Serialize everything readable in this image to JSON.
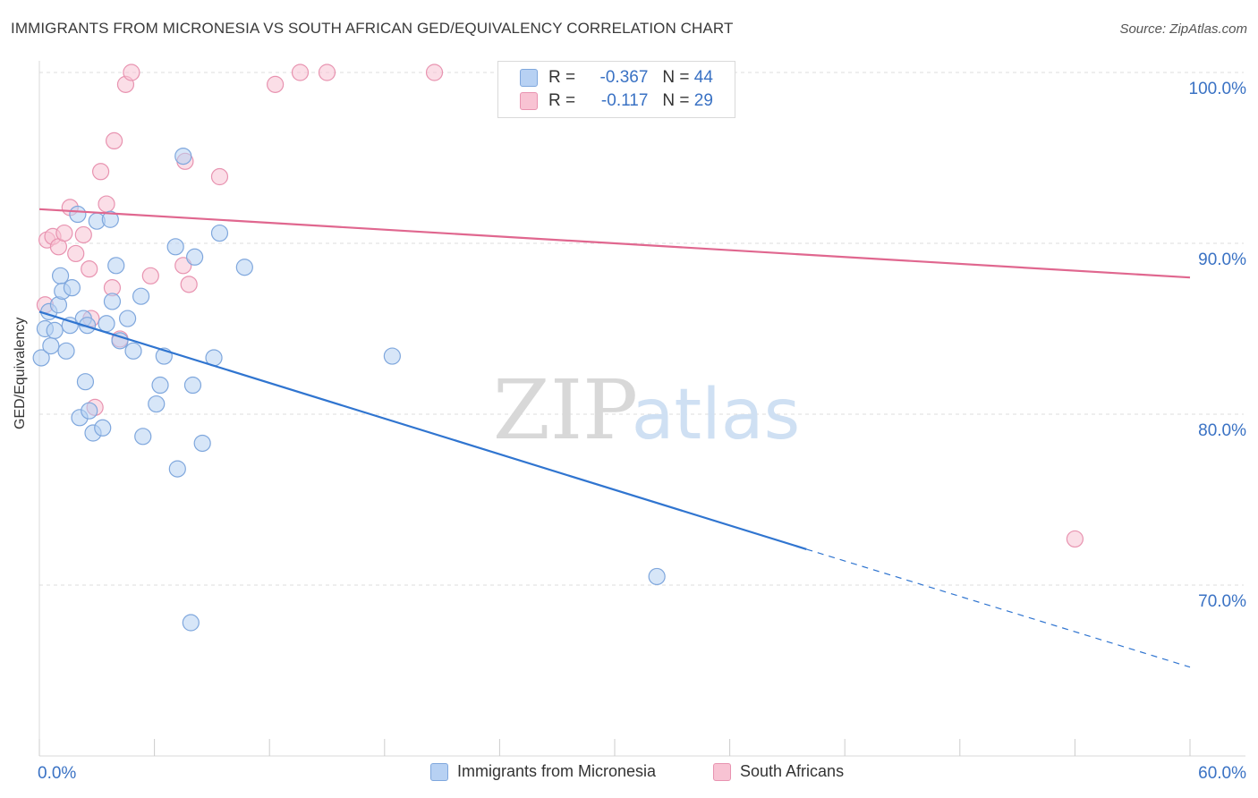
{
  "title": "IMMIGRANTS FROM MICRONESIA VS SOUTH AFRICAN GED/EQUIVALENCY CORRELATION CHART",
  "source": "Source: ZipAtlas.com",
  "watermark": {
    "zip": "ZIP",
    "atlas": "atlas"
  },
  "legend": {
    "r_label": "R =",
    "n_label": "N =",
    "rows": [
      {
        "r": "-0.367",
        "n": "44"
      },
      {
        "r": "-0.117",
        "n": "29"
      }
    ]
  },
  "colors": {
    "blue_fill": "#b7d1f3",
    "blue_stroke": "#7fa7dd",
    "blue_line": "#3075d0",
    "pink_fill": "#f8c3d3",
    "pink_stroke": "#e893b0",
    "pink_line": "#e0678f",
    "tick_label": "#3a72c4",
    "grid": "#dddddd"
  },
  "chart_data": {
    "type": "scatter",
    "xlabel": "",
    "ylabel": "GED/Equivalency",
    "xlim": [
      0,
      60
    ],
    "ylim": [
      60,
      102
    ],
    "x_tick_labels": [
      "0.0%",
      "60.0%"
    ],
    "y_ticks": [
      70,
      80,
      90,
      100
    ],
    "y_tick_labels": [
      "70.0%",
      "80.0%",
      "90.0%",
      "100.0%"
    ],
    "grid": true,
    "legend_position": "bottom",
    "series": [
      {
        "name": "Immigrants from Micronesia",
        "color": "blue",
        "trend": {
          "x0": 0,
          "y0": 86.0,
          "x1": 40,
          "y1": 72.1,
          "dashed_to_x": 60,
          "dashed_to_y": 65.2
        },
        "points": [
          [
            0.1,
            83.3
          ],
          [
            0.3,
            85.0
          ],
          [
            0.5,
            86.0
          ],
          [
            0.6,
            84.0
          ],
          [
            0.8,
            84.9
          ],
          [
            1.0,
            86.4
          ],
          [
            1.1,
            88.1
          ],
          [
            1.2,
            87.2
          ],
          [
            1.4,
            83.7
          ],
          [
            1.6,
            85.2
          ],
          [
            1.7,
            87.4
          ],
          [
            2.0,
            91.7
          ],
          [
            2.1,
            79.8
          ],
          [
            2.3,
            85.6
          ],
          [
            2.4,
            81.9
          ],
          [
            2.5,
            85.2
          ],
          [
            2.6,
            80.2
          ],
          [
            2.8,
            78.9
          ],
          [
            3.0,
            91.3
          ],
          [
            3.3,
            79.2
          ],
          [
            3.5,
            85.3
          ],
          [
            3.7,
            91.4
          ],
          [
            3.8,
            86.6
          ],
          [
            4.0,
            88.7
          ],
          [
            4.2,
            84.3
          ],
          [
            4.6,
            85.6
          ],
          [
            4.9,
            83.7
          ],
          [
            5.3,
            86.9
          ],
          [
            5.4,
            78.7
          ],
          [
            6.1,
            80.6
          ],
          [
            6.3,
            81.7
          ],
          [
            6.5,
            83.4
          ],
          [
            7.1,
            89.8
          ],
          [
            7.2,
            76.8
          ],
          [
            7.5,
            95.1
          ],
          [
            7.9,
            67.8
          ],
          [
            8.0,
            81.7
          ],
          [
            8.1,
            89.2
          ],
          [
            8.5,
            78.3
          ],
          [
            9.1,
            83.3
          ],
          [
            9.4,
            90.6
          ],
          [
            10.7,
            88.6
          ],
          [
            18.4,
            83.4
          ],
          [
            32.2,
            70.5
          ]
        ]
      },
      {
        "name": "South Africans",
        "color": "pink",
        "trend": {
          "x0": 0,
          "y0": 92.0,
          "x1": 60,
          "y1": 88.0
        },
        "points": [
          [
            0.3,
            86.4
          ],
          [
            0.4,
            90.2
          ],
          [
            0.7,
            90.4
          ],
          [
            1.0,
            89.8
          ],
          [
            1.3,
            90.6
          ],
          [
            1.6,
            92.1
          ],
          [
            1.9,
            89.4
          ],
          [
            2.3,
            90.5
          ],
          [
            2.6,
            88.5
          ],
          [
            2.7,
            85.6
          ],
          [
            2.9,
            80.4
          ],
          [
            3.2,
            94.2
          ],
          [
            3.5,
            92.3
          ],
          [
            3.8,
            87.4
          ],
          [
            3.9,
            96.0
          ],
          [
            4.2,
            84.4
          ],
          [
            4.5,
            99.3
          ],
          [
            4.8,
            100.0
          ],
          [
            5.8,
            88.1
          ],
          [
            7.5,
            88.7
          ],
          [
            7.6,
            94.8
          ],
          [
            7.8,
            87.6
          ],
          [
            9.4,
            93.9
          ],
          [
            12.3,
            99.3
          ],
          [
            13.6,
            100.0
          ],
          [
            15.0,
            100.0
          ],
          [
            20.6,
            100.0
          ],
          [
            33.4,
            100.0
          ],
          [
            54.0,
            72.7
          ]
        ]
      }
    ]
  }
}
